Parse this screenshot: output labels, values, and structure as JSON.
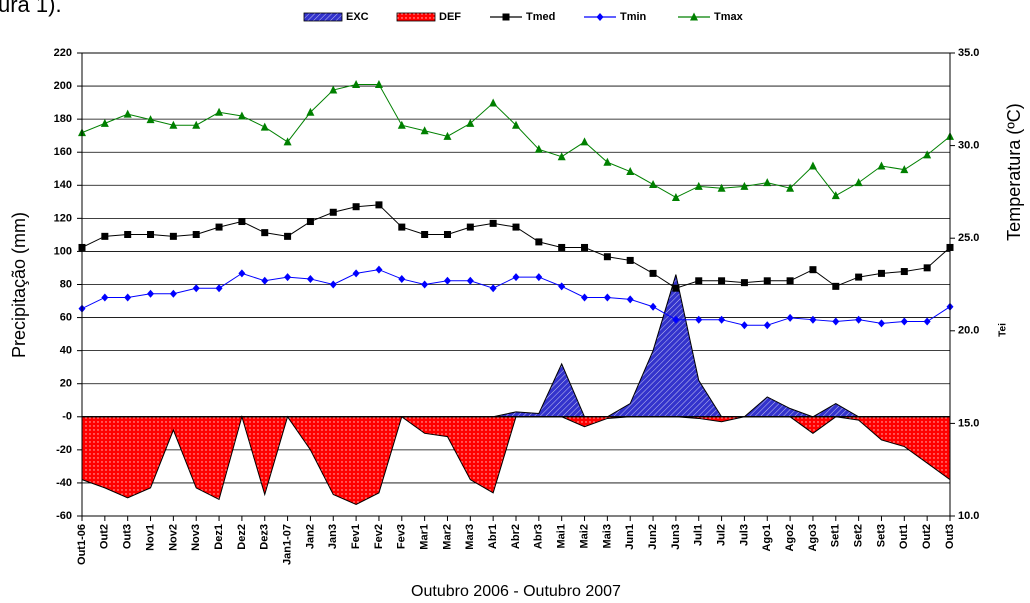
{
  "chart_data": {
    "type": "line",
    "caption_fragment": "ura 1).",
    "x_label": "Outubro 2006 - Outubro 2007",
    "y_label": "Precipitação (mm)",
    "y2_label": "Temperatura (ºC)",
    "y2_label_fragment": "Tei",
    "categories": [
      "Out1-06",
      "Out2",
      "Out3",
      "Nov1",
      "Nov2",
      "Nov3",
      "Dez1",
      "Dez2",
      "Dez3",
      "Jan1-07",
      "Jan2",
      "Jan3",
      "Fev1",
      "Fev2",
      "Fev3",
      "Mar1",
      "Mar2",
      "Mar3",
      "Abr1",
      "Abr2",
      "Abr3",
      "Mai1",
      "Mai2",
      "Mai3",
      "Jun1",
      "Jun2",
      "Jun3",
      "Jul1",
      "Jul2",
      "Jul3",
      "Ago1",
      "Ago2",
      "Ago3",
      "Set1",
      "Set2",
      "Set3",
      "Out1",
      "Out2",
      "Out3"
    ],
    "ylim": [
      -60,
      220
    ],
    "yticks": [
      -60,
      -40,
      -20,
      {
        "value": 0,
        "label": "-0"
      },
      20,
      40,
      60,
      80,
      100,
      120,
      140,
      160,
      180,
      200,
      220
    ],
    "y2lim": [
      10,
      35
    ],
    "y2ticks": [
      {
        "value": 10,
        "label": "10.0"
      },
      {
        "value": 15,
        "label": "15.0"
      },
      {
        "value": 20,
        "label": "20.0"
      },
      {
        "value": 25,
        "label": "25.0"
      },
      {
        "value": 30,
        "label": "30.0"
      },
      {
        "value": 35,
        "label": "35.0"
      }
    ],
    "grid": true,
    "legend": "top",
    "series": [
      {
        "name": "EXC",
        "type": "area",
        "pattern": "hatch",
        "color": "#3333cc",
        "values": [
          0,
          0,
          0,
          0,
          0,
          0,
          0,
          0,
          0,
          0,
          0,
          0,
          0,
          0,
          0,
          0,
          0,
          0,
          0,
          3,
          2,
          32,
          0,
          0,
          8,
          40,
          86,
          22,
          0,
          0,
          12,
          5,
          0,
          8,
          0,
          0,
          0,
          0,
          0
        ]
      },
      {
        "name": "DEF",
        "type": "area",
        "pattern": "dots",
        "color": "#ff0000",
        "values": [
          -38,
          -43,
          -49,
          -43,
          -8,
          -43,
          -50,
          0,
          -47,
          0,
          -20,
          -47,
          -53,
          -46,
          0,
          -10,
          -12,
          -38,
          -46,
          0,
          0,
          0,
          -6,
          -1,
          0,
          0,
          0,
          -1,
          -3,
          0,
          0,
          0,
          -10,
          0,
          -2,
          -14,
          -18,
          -28,
          -38
        ]
      },
      {
        "name": "Tmed",
        "type": "line",
        "marker": "square",
        "axis": "y2",
        "color": "#000000",
        "values": [
          24.5,
          25.1,
          25.2,
          25.2,
          25.1,
          25.2,
          25.6,
          25.9,
          25.3,
          25.1,
          25.9,
          26.4,
          26.7,
          26.8,
          25.6,
          25.2,
          25.2,
          25.6,
          25.8,
          25.6,
          24.8,
          24.5,
          24.5,
          24.0,
          23.8,
          23.1,
          22.3,
          22.7,
          22.7,
          22.6,
          22.7,
          22.7,
          23.3,
          22.4,
          22.9,
          23.1,
          23.2,
          23.4,
          24.5
        ]
      },
      {
        "name": "Tmin",
        "type": "line",
        "marker": "diamond",
        "axis": "y2",
        "color": "#0000ff",
        "values": [
          21.2,
          21.8,
          21.8,
          22.0,
          22.0,
          22.3,
          22.3,
          23.1,
          22.7,
          22.9,
          22.8,
          22.5,
          23.1,
          23.3,
          22.8,
          22.5,
          22.7,
          22.7,
          22.3,
          22.9,
          22.9,
          22.4,
          21.8,
          21.8,
          21.7,
          21.3,
          20.6,
          20.6,
          20.6,
          20.3,
          20.3,
          20.7,
          20.6,
          20.5,
          20.6,
          20.4,
          20.5,
          20.5,
          21.3
        ]
      },
      {
        "name": "Tmax",
        "type": "line",
        "marker": "triangle",
        "axis": "y2",
        "color": "#008000",
        "values": [
          30.7,
          31.2,
          31.7,
          31.4,
          31.1,
          31.1,
          31.8,
          31.6,
          31.0,
          30.2,
          31.8,
          33.0,
          33.3,
          33.3,
          31.1,
          30.8,
          30.5,
          31.2,
          32.3,
          31.1,
          29.8,
          29.4,
          30.2,
          29.1,
          28.6,
          27.9,
          27.2,
          27.8,
          27.7,
          27.8,
          28.0,
          27.7,
          28.9,
          27.3,
          28.0,
          28.9,
          28.7,
          29.5,
          30.5
        ]
      }
    ]
  }
}
